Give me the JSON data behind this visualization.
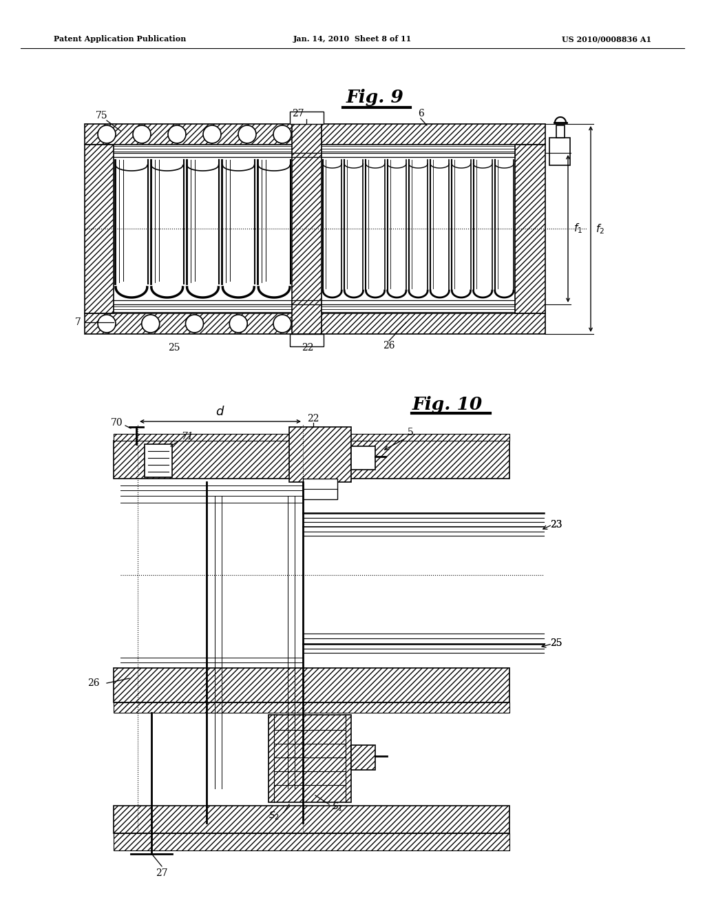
{
  "bg_color": "#ffffff",
  "header_left": "Patent Application Publication",
  "header_mid": "Jan. 14, 2010  Sheet 8 of 11",
  "header_right": "US 2010/0008836 A1",
  "fig9_title": "Fig. 9",
  "fig10_title": "Fig. 10",
  "line_color": "#000000",
  "hatch_color": "#000000"
}
